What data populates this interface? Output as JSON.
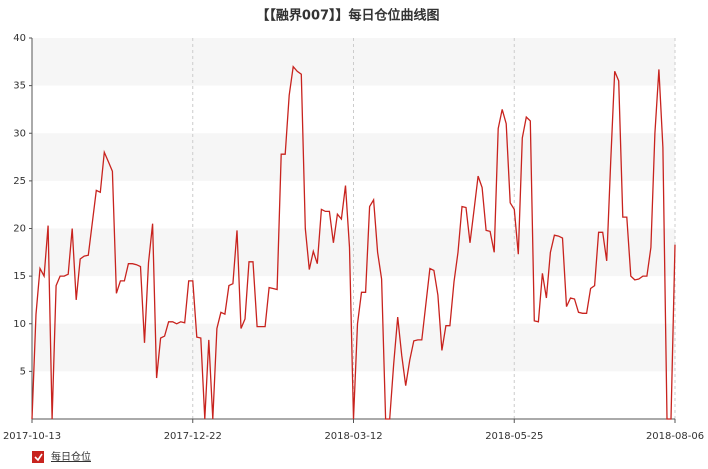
{
  "chart_data": {
    "type": "line",
    "title": "【【融界007】】每日仓位曲线图",
    "categories": [
      "2017-10-13",
      null,
      null,
      null,
      null,
      null,
      null,
      null,
      null,
      null,
      null,
      null,
      null,
      null,
      null,
      null,
      null,
      null,
      null,
      null,
      null,
      null,
      null,
      null,
      null,
      null,
      null,
      null,
      null,
      null,
      null,
      null,
      null,
      null,
      null,
      null,
      null,
      null,
      null,
      null,
      "2017-12-22",
      null,
      null,
      null,
      null,
      null,
      null,
      null,
      null,
      null,
      null,
      null,
      null,
      null,
      null,
      null,
      null,
      null,
      null,
      null,
      null,
      null,
      null,
      null,
      null,
      null,
      null,
      null,
      null,
      null,
      null,
      null,
      null,
      null,
      null,
      null,
      null,
      null,
      null,
      null,
      "2018-03-12",
      null,
      null,
      null,
      null,
      null,
      null,
      null,
      null,
      null,
      null,
      null,
      null,
      null,
      null,
      null,
      null,
      null,
      null,
      null,
      null,
      null,
      null,
      null,
      null,
      null,
      null,
      null,
      null,
      null,
      null,
      null,
      null,
      null,
      null,
      null,
      null,
      null,
      null,
      null,
      "2018-05-25",
      null,
      null,
      null,
      null,
      null,
      null,
      null,
      null,
      null,
      null,
      null,
      null,
      null,
      null,
      null,
      null,
      null,
      null,
      null,
      null,
      null,
      null,
      null,
      null,
      null,
      null,
      null,
      null,
      null,
      null,
      null,
      null,
      null,
      null,
      null,
      null,
      null,
      null,
      null,
      "2018-08-06"
    ],
    "series": [
      {
        "name": "每日仓位",
        "color": "#c8231e",
        "values": [
          0,
          11,
          15.8,
          15,
          20.3,
          0,
          14,
          15,
          15,
          15.2,
          20,
          12.5,
          16.8,
          17.1,
          17.2,
          20.6,
          24,
          23.8,
          28,
          27,
          26,
          13.2,
          14.5,
          14.5,
          16.3,
          16.3,
          16.2,
          16,
          8,
          16.4,
          20.5,
          4.3,
          8.5,
          8.7,
          10.2,
          10.2,
          10,
          10.2,
          10.1,
          14.5,
          14.5,
          8.6,
          8.5,
          0,
          8.3,
          0,
          9.5,
          11.2,
          11,
          14,
          14.2,
          19.8,
          9.5,
          10.5,
          16.5,
          16.5,
          9.7,
          9.7,
          9.7,
          13.8,
          13.7,
          13.6,
          27.8,
          27.8,
          34,
          37,
          36.5,
          36.2,
          20,
          15.7,
          17.6,
          16.3,
          22,
          21.8,
          21.8,
          18.5,
          21.5,
          21,
          24.5,
          18,
          0,
          10,
          13.3,
          13.3,
          22.3,
          23,
          17.5,
          14.7,
          0,
          0,
          5.8,
          10.7,
          6.7,
          3.5,
          6.2,
          8.2,
          8.3,
          8.3,
          12,
          15.8,
          15.6,
          13,
          7.2,
          9.8,
          9.8,
          14.4,
          17.5,
          22.3,
          22.2,
          18.5,
          22,
          25.5,
          24.3,
          19.8,
          19.7,
          17.5,
          30.5,
          32.5,
          31,
          22.7,
          22,
          17.3,
          29.5,
          31.7,
          31.3,
          10.3,
          10.2,
          15.3,
          12.7,
          17.5,
          19.3,
          19.2,
          19,
          11.8,
          12.7,
          12.6,
          11.2,
          11.1,
          11.1,
          13.7,
          14,
          19.6,
          19.6,
          16.6,
          27,
          36.5,
          35.5,
          21.2,
          21.2,
          15,
          14.6,
          14.7,
          15,
          15,
          18,
          30,
          36.7,
          28.5,
          0,
          0,
          18.3
        ]
      }
    ],
    "ylim": [
      0,
      40
    ],
    "yticks": [
      5,
      10,
      15,
      20,
      25,
      30,
      35,
      40
    ],
    "grid": true,
    "legend": "bottom-left"
  }
}
